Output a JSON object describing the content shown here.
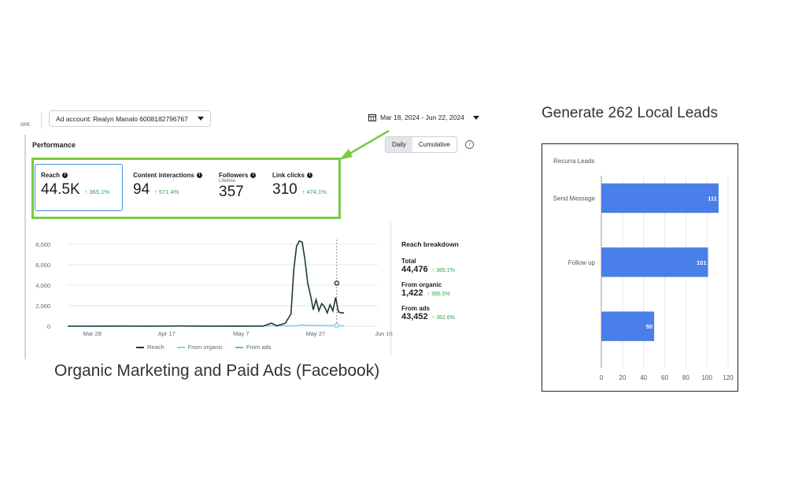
{
  "fb": {
    "fragment_text": "ore.",
    "ad_account_label": "Ad account: Realyn Manalo 6008182796767",
    "date_range": "Mar 18, 2024 - Jun 22, 2024",
    "performance_title": "Performance",
    "toggle": {
      "daily": "Daily",
      "cumulative": "Cumulative"
    },
    "metrics": [
      {
        "label": "Reach",
        "sub": "",
        "value": "44.5K",
        "delta": "↑ 365.1%"
      },
      {
        "label": "Content interactions",
        "sub": "",
        "value": "94",
        "delta": "↑ 571.4%"
      },
      {
        "label": "Followers",
        "sub": "Lifetime",
        "value": "357",
        "delta": ""
      },
      {
        "label": "Link clicks",
        "sub": "",
        "value": "310",
        "delta": "↑ 474.1%"
      }
    ],
    "breakdown": {
      "title": "Reach breakdown",
      "items": [
        {
          "name": "Total",
          "value": "44,476",
          "delta": "↑ 365.1%"
        },
        {
          "name": "From organic",
          "value": "1,422",
          "delta": "↑ 395.5%"
        },
        {
          "name": "From ads",
          "value": "43,452",
          "delta": "↑ 362.6%"
        }
      ]
    },
    "legend": [
      "Reach",
      "From organic",
      "From ads"
    ],
    "colors": {
      "reach": "#1e3a3a",
      "organic": "#7fd3f0",
      "ads": "#45c7c7",
      "highlight": "#7ac943",
      "positive": "#31a24c"
    }
  },
  "caption": "Organic Marketing  and Paid Ads (Facebook)",
  "leads_heading": "Generate 262 Local Leads",
  "chart_data": [
    {
      "type": "line",
      "title": "",
      "x_tick_labels": [
        "Mar 28",
        "Apr 17",
        "May 7",
        "May 27",
        "Jun 16"
      ],
      "y_tick_labels": [
        "0",
        "2,000",
        "4,000",
        "6,000",
        "8,000"
      ],
      "ylim": [
        0,
        8600
      ],
      "series": [
        {
          "name": "Reach",
          "color": "#1e3a3a",
          "values": [
            [
              0,
              0
            ],
            [
              10,
              0
            ],
            [
              20,
              10
            ],
            [
              30,
              0
            ],
            [
              40,
              20
            ],
            [
              50,
              0
            ],
            [
              60,
              5
            ],
            [
              70,
              0
            ],
            [
              73,
              300
            ],
            [
              75,
              40
            ],
            [
              78,
              300
            ],
            [
              80,
              1200
            ],
            [
              81,
              5500
            ],
            [
              82,
              7800
            ],
            [
              83,
              8300
            ],
            [
              84,
              8200
            ],
            [
              85,
              6500
            ],
            [
              86,
              4200
            ],
            [
              87,
              3000
            ],
            [
              88,
              1600
            ],
            [
              89,
              2600
            ],
            [
              90,
              1500
            ],
            [
              91,
              2200
            ],
            [
              92,
              1900
            ],
            [
              93,
              1300
            ],
            [
              94,
              2100
            ],
            [
              95,
              1500
            ],
            [
              96,
              2800
            ],
            [
              97,
              1400
            ],
            [
              98,
              1300
            ],
            [
              99,
              1300
            ]
          ]
        },
        {
          "name": "From organic",
          "color": "#7fd3f0",
          "values": [
            [
              0,
              0
            ],
            [
              82,
              40
            ],
            [
              84,
              120
            ],
            [
              86,
              80
            ],
            [
              99,
              40
            ]
          ]
        }
      ],
      "grid": true
    },
    {
      "type": "bar",
      "title": "Recurra Leads",
      "orientation": "horizontal",
      "categories": [
        "Send Message",
        "Follow up",
        ""
      ],
      "values": [
        111,
        101,
        50
      ],
      "color": "#4a7ee8",
      "xlim": [
        0,
        120
      ],
      "x_ticks": [
        0,
        20,
        40,
        60,
        80,
        100,
        120
      ]
    }
  ]
}
